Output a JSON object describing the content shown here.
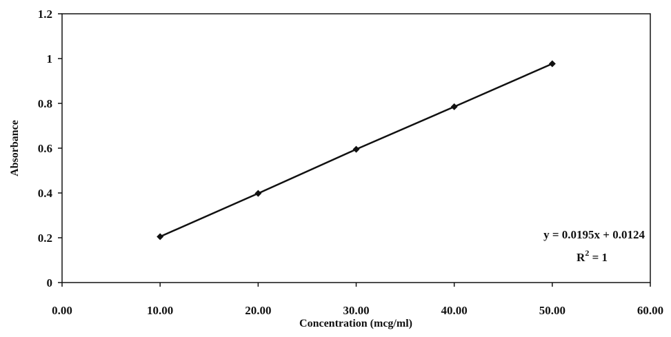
{
  "chart_data": {
    "type": "scatter",
    "xlabel": "Concentration (mcg/ml)",
    "ylabel": "Absorbance",
    "xlim": [
      0,
      60
    ],
    "ylim": [
      0,
      1.2
    ],
    "x_ticks": [
      0,
      10,
      20,
      30,
      40,
      50,
      60
    ],
    "x_tick_labels": [
      "0.00",
      "10.00",
      "20.00",
      "30.00",
      "40.00",
      "50.00",
      "60.00"
    ],
    "y_ticks": [
      0,
      0.2,
      0.4,
      0.6,
      0.8,
      1,
      1.2
    ],
    "y_tick_labels": [
      "0",
      "0.2",
      "0.4",
      "0.6",
      "0.8",
      "1",
      "1.2"
    ],
    "grid": false,
    "series": [
      {
        "x": [
          10,
          20,
          30,
          40,
          50
        ],
        "y": [
          0.205,
          0.398,
          0.595,
          0.785,
          0.977
        ],
        "color": "#111111",
        "marker": "diamond",
        "line": true
      }
    ],
    "annotations": {
      "equation": "y = 0.0195x + 0.0124",
      "r2_base": "R",
      "r2_exp": "2",
      "r2_value": " = 1"
    }
  }
}
